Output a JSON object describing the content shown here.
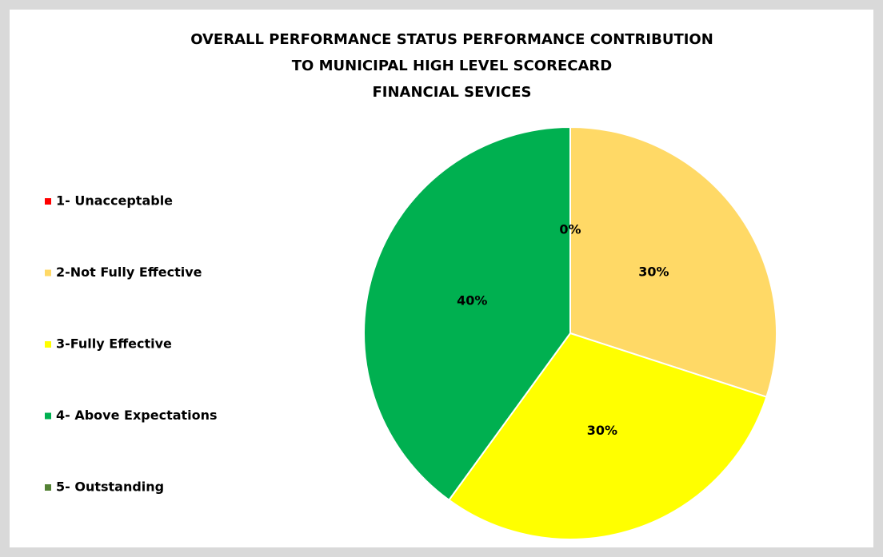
{
  "chart_data": {
    "type": "pie",
    "title": [
      "OVERALL PERFORMANCE STATUS PERFORMANCE CONTRIBUTION",
      "TO MUNICIPAL HIGH LEVEL SCORECARD",
      "FINANCIAL SEVICES"
    ],
    "categories": [
      "1- Unacceptable",
      "2-Not Fully Effective",
      "3-Fully Effective",
      "4- Above Expectations",
      "5- Outstanding"
    ],
    "values": [
      0,
      30,
      30,
      40,
      0
    ],
    "value_labels": [
      "0%",
      "30%",
      "30%",
      "40%",
      null
    ],
    "colors": [
      "#ff0000",
      "#ffd966",
      "#ffff00",
      "#00b050",
      "#548235"
    ],
    "legend": "left"
  }
}
